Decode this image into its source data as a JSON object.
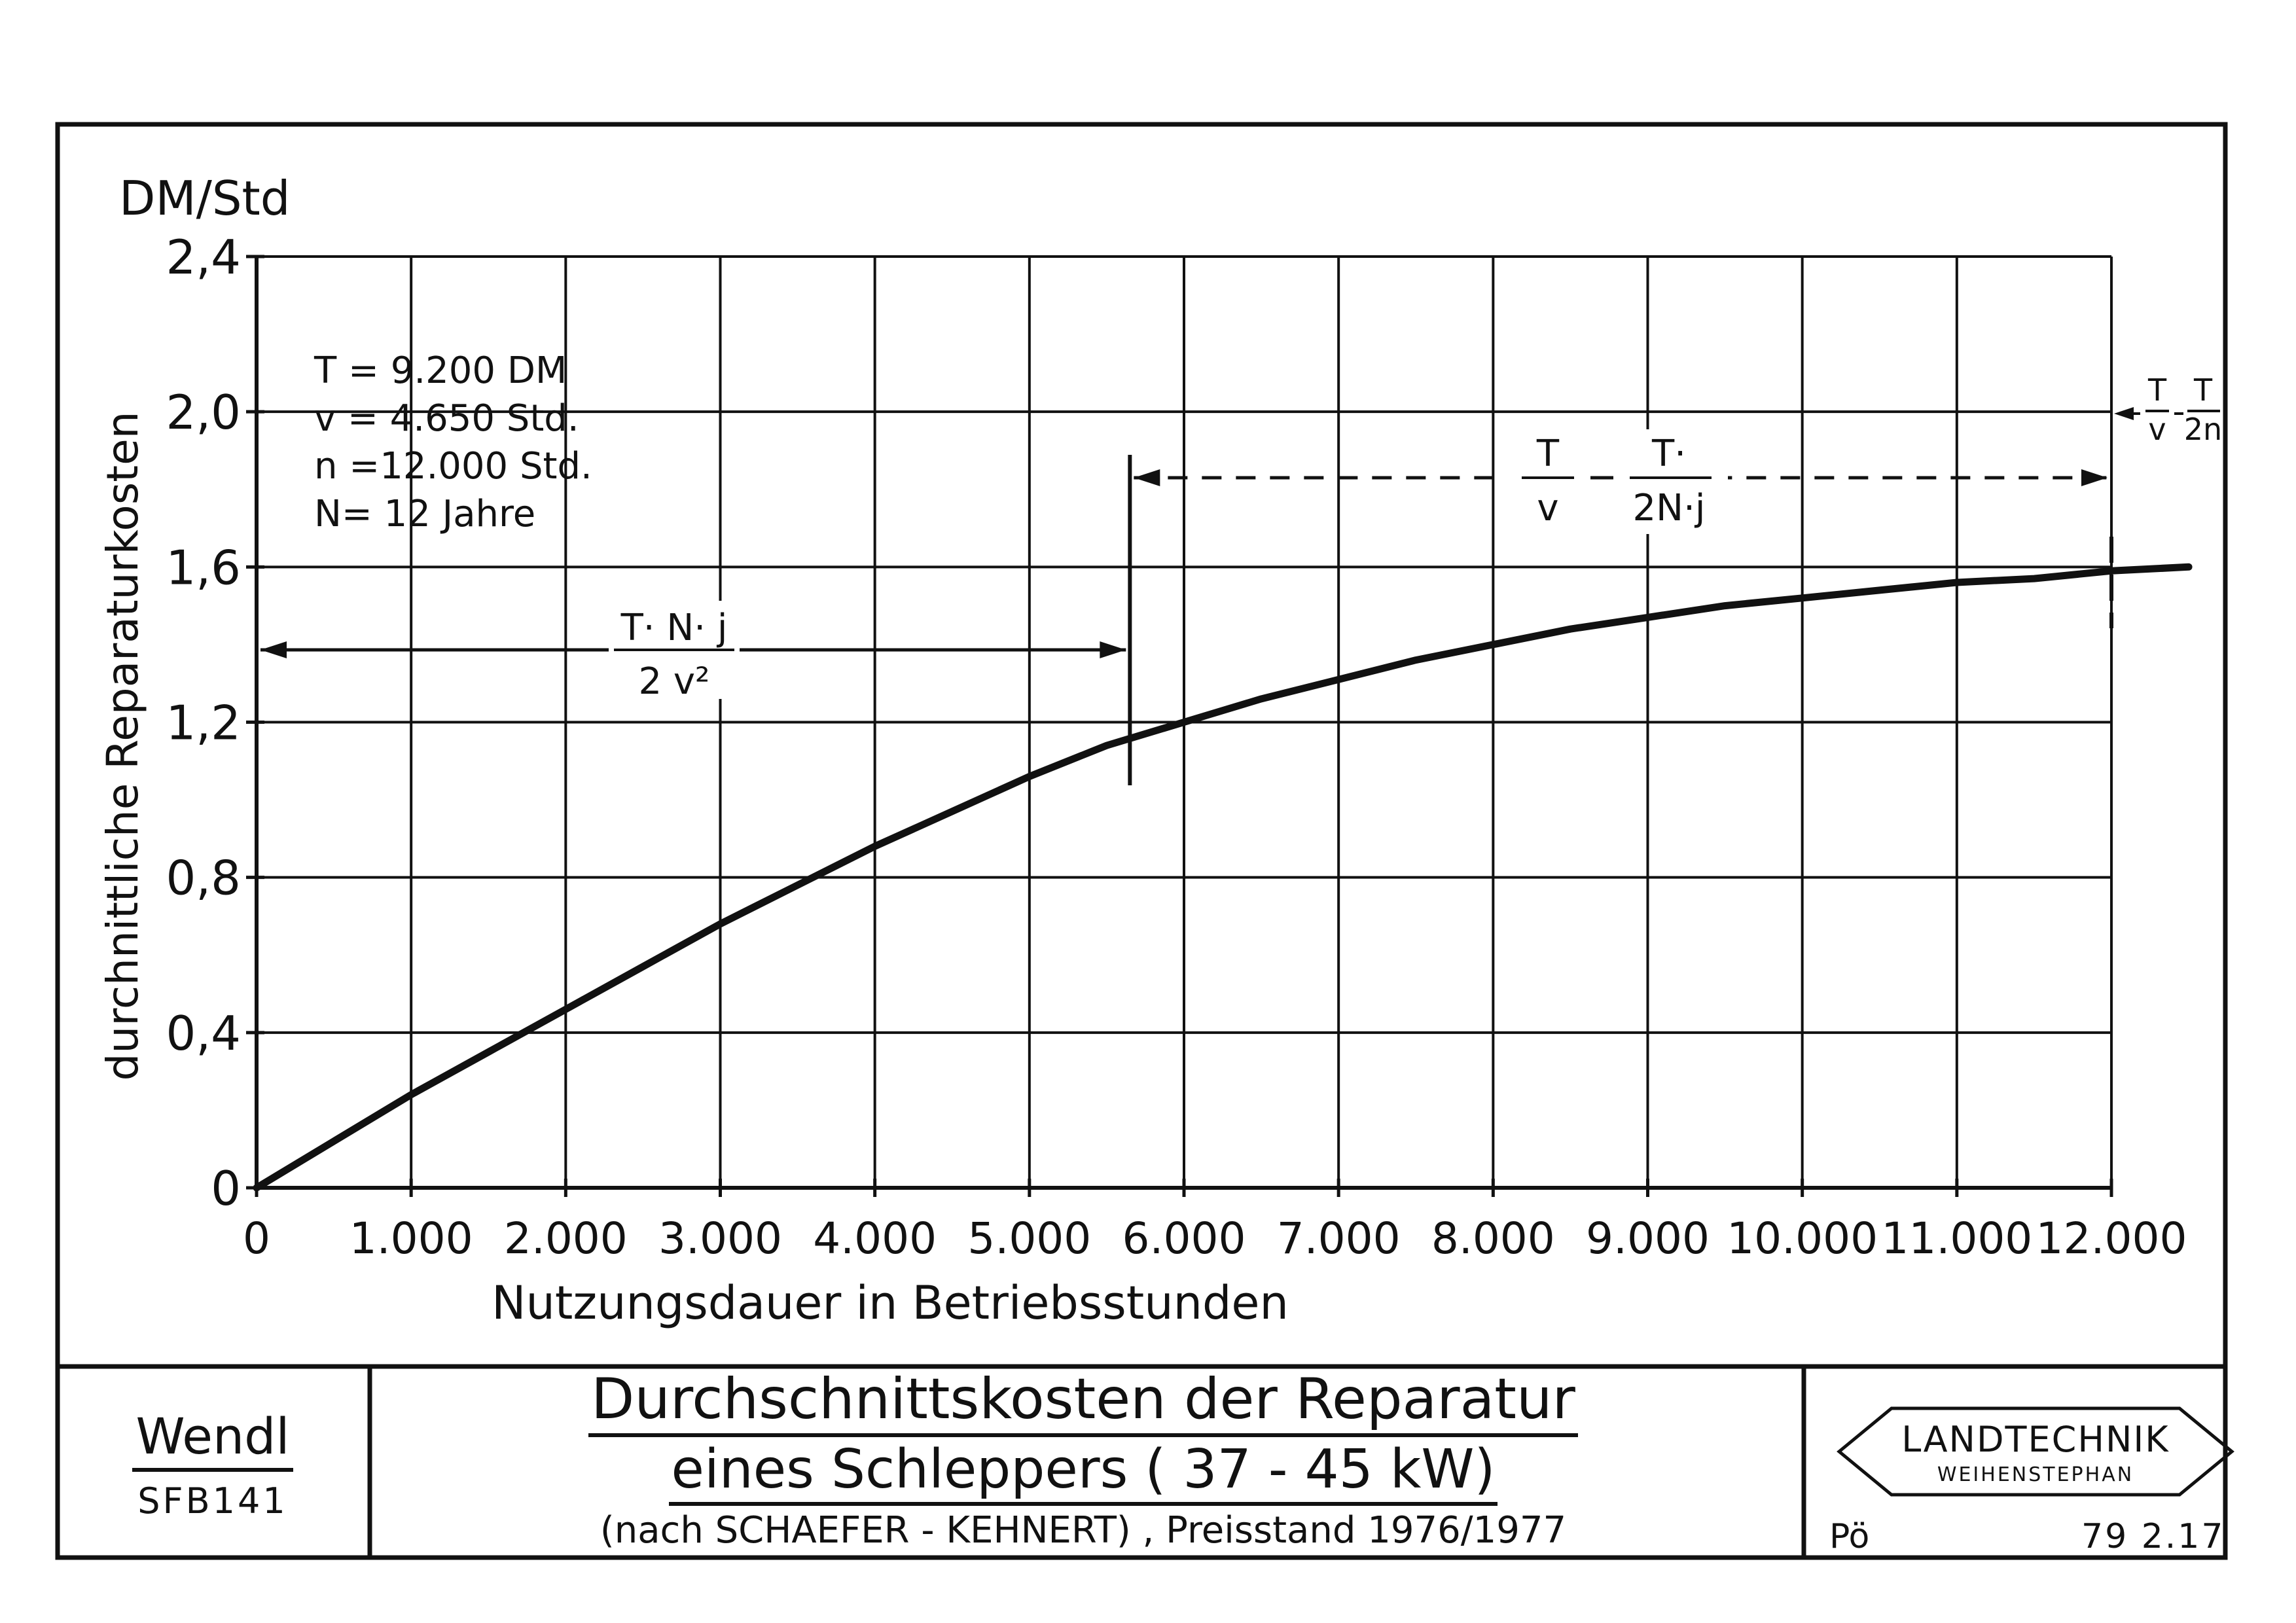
{
  "chart_data": {
    "type": "line",
    "ylabel_unit": "DM/Std",
    "ylabel": "durchnittliche Reparaturkosten",
    "xlabel": "Nutzungsdauer in Betriebsstunden",
    "x_ticks": [
      0,
      1000,
      2000,
      3000,
      4000,
      5000,
      6000,
      7000,
      8000,
      9000,
      10000,
      11000,
      12000
    ],
    "x_tick_labels": [
      "0",
      "1.000",
      "2.000",
      "3.000",
      "4.000",
      "5.000",
      "6.000",
      "7.000",
      "8.000",
      "9.000",
      "10.000",
      "11.000",
      "12.000"
    ],
    "y_ticks": [
      0,
      0.4,
      0.8,
      1.2,
      1.6,
      2.0,
      2.4
    ],
    "y_tick_labels": [
      "0",
      "0,4",
      "0,8",
      "1,2",
      "1,6",
      "2,0",
      "2,4"
    ],
    "xlim": [
      0,
      12000
    ],
    "ylim": [
      0,
      2.4
    ],
    "grid": true,
    "series": [
      {
        "x": [
          0,
          500,
          1000,
          1500,
          2000,
          2500,
          3000,
          3500,
          4000,
          4500,
          5000,
          5500,
          6000,
          6500,
          7000,
          7500,
          8000,
          8500,
          9000,
          9500,
          10000,
          10500,
          11000,
          11500,
          12000,
          12500
        ],
        "y": [
          0,
          0.12,
          0.24,
          0.35,
          0.46,
          0.57,
          0.68,
          0.78,
          0.88,
          0.97,
          1.06,
          1.14,
          1.2,
          1.26,
          1.31,
          1.36,
          1.4,
          1.44,
          1.47,
          1.5,
          1.52,
          1.54,
          1.56,
          1.57,
          1.59,
          1.6
        ]
      }
    ],
    "phase_marker_x": [
      5650,
      12000
    ],
    "parameters": [
      "T = 9.200 DM",
      "v = 4.650 Std.",
      "n =12.000 Std.",
      "N=  12 Jahre"
    ],
    "annotations": {
      "phase1": {
        "numerator": "T· N· j",
        "denominator": "2 v²"
      },
      "phase2": {
        "num1": "T",
        "den1": "v",
        "num2": "T·",
        "den2": "2N·j"
      },
      "phase3": {
        "num1": "T",
        "den1": "v",
        "num2": "T",
        "den2": "2n"
      }
    }
  },
  "footer": {
    "author": "Wendl",
    "author_id": "SFB141",
    "title_line1": "Durchschnittskosten der Reparatur",
    "title_line2": "eines Schleppers  ( 37 - 45 kW)",
    "source": "(nach SCHAEFER - KEHNERT) , Preisstand 1976/1977",
    "logo_line1": "LANDTECHNIK",
    "logo_line2": "WEIHENSTEPHAN",
    "abbr": "Pö",
    "code": "79 2.17"
  }
}
